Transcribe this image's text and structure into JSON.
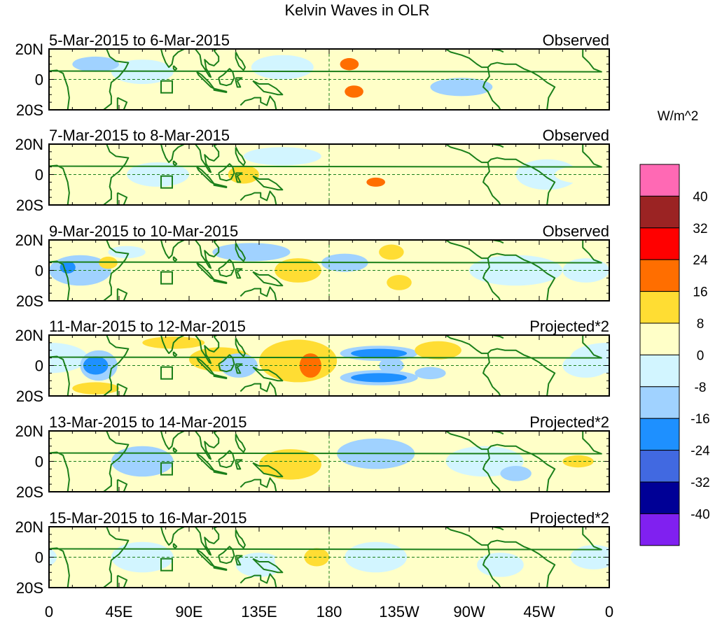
{
  "chart_data": {
    "type": "heatmap",
    "title": "Kelvin Waves in OLR",
    "units_label": "W/m^2",
    "x_ticks": [
      "0",
      "45E",
      "90E",
      "135E",
      "180",
      "135W",
      "90W",
      "45W",
      "0"
    ],
    "x_tick_lons": [
      0,
      45,
      90,
      135,
      180,
      225,
      270,
      315,
      360
    ],
    "y_ticks": [
      "20N",
      "0",
      "20S"
    ],
    "y_tick_lats": [
      20,
      0,
      -20
    ],
    "lon_range": [
      0,
      360
    ],
    "lat_range": [
      -20,
      20
    ],
    "colorbar": {
      "levels": [
        "40",
        "32",
        "24",
        "16",
        "8",
        "0",
        "-8",
        "-16",
        "-24",
        "-32",
        "-40"
      ],
      "colors": [
        "#ff69b4",
        "#9b2323",
        "#ff0000",
        "#ff6e00",
        "#ffdd33",
        "#ffffc8",
        "#d2f5ff",
        "#a0d2ff",
        "#1e90ff",
        "#4169e1",
        "#000096",
        "#8020f0"
      ]
    },
    "coast_color": "#1a7f1a",
    "panels": [
      {
        "date": "5-Mar-2015 to 6-Mar-2015",
        "type": "Observed",
        "blobs": [
          [
            20,
            0,
            30,
            12,
            2
          ],
          [
            60,
            5,
            20,
            8,
            -3
          ],
          [
            100,
            -2,
            25,
            8,
            3
          ],
          [
            150,
            8,
            20,
            8,
            -3
          ],
          [
            193,
            0,
            20,
            18,
            5
          ],
          [
            193,
            10,
            6,
            4,
            18
          ],
          [
            196,
            -8,
            6,
            4,
            18
          ],
          [
            265,
            -5,
            20,
            6,
            -10
          ],
          [
            300,
            0,
            30,
            10,
            2
          ],
          [
            350,
            0,
            15,
            8,
            3
          ],
          [
            30,
            10,
            15,
            5,
            -10
          ],
          [
            60,
            -15,
            15,
            5,
            3
          ]
        ]
      },
      {
        "date": "7-Mar-2015 to 8-Mar-2015",
        "type": "Observed",
        "blobs": [
          [
            15,
            5,
            20,
            8,
            3
          ],
          [
            45,
            -10,
            15,
            6,
            3
          ],
          [
            70,
            0,
            20,
            8,
            -3
          ],
          [
            115,
            10,
            20,
            8,
            3
          ],
          [
            125,
            0,
            10,
            6,
            10
          ],
          [
            140,
            -3,
            20,
            8,
            3
          ],
          [
            150,
            12,
            25,
            6,
            -3
          ],
          [
            185,
            5,
            15,
            8,
            3
          ],
          [
            210,
            5,
            15,
            6,
            3
          ],
          [
            210,
            -5,
            6,
            3,
            18
          ],
          [
            255,
            0,
            20,
            8,
            3
          ],
          [
            320,
            0,
            20,
            10,
            -3
          ],
          [
            345,
            0,
            20,
            6,
            3
          ]
        ]
      },
      {
        "date": "9-Mar-2015 to 10-Mar-2015",
        "type": "Observed",
        "blobs": [
          [
            20,
            0,
            20,
            10,
            -10
          ],
          [
            12,
            2,
            5,
            4,
            -18
          ],
          [
            38,
            5,
            6,
            4,
            10
          ],
          [
            50,
            12,
            12,
            4,
            -3
          ],
          [
            130,
            12,
            25,
            6,
            -10
          ],
          [
            160,
            0,
            15,
            8,
            10
          ],
          [
            190,
            5,
            15,
            6,
            -10
          ],
          [
            220,
            12,
            8,
            5,
            10
          ],
          [
            225,
            -8,
            8,
            5,
            10
          ],
          [
            260,
            0,
            25,
            10,
            3
          ],
          [
            300,
            0,
            30,
            10,
            -3
          ],
          [
            345,
            0,
            15,
            8,
            -3
          ]
        ]
      },
      {
        "date": "11-Mar-2015 to 12-Mar-2015",
        "type": "Projected*2",
        "blobs": [
          [
            0,
            5,
            25,
            10,
            -3
          ],
          [
            32,
            0,
            12,
            10,
            -10
          ],
          [
            30,
            0,
            8,
            6,
            -20
          ],
          [
            80,
            15,
            20,
            4,
            10
          ],
          [
            95,
            3,
            25,
            10,
            3
          ],
          [
            110,
            4,
            20,
            8,
            10
          ],
          [
            122,
            0,
            12,
            8,
            -10
          ],
          [
            160,
            3,
            25,
            14,
            10
          ],
          [
            168,
            0,
            7,
            8,
            20
          ],
          [
            175,
            -10,
            15,
            4,
            3
          ],
          [
            212,
            8,
            25,
            5,
            -10
          ],
          [
            212,
            8,
            18,
            3,
            -20
          ],
          [
            220,
            0,
            8,
            5,
            -10
          ],
          [
            212,
            -8,
            25,
            5,
            -10
          ],
          [
            212,
            -8,
            18,
            3,
            -20
          ],
          [
            250,
            10,
            15,
            6,
            10
          ],
          [
            245,
            -5,
            10,
            4,
            -10
          ],
          [
            300,
            0,
            20,
            10,
            3
          ],
          [
            30,
            -15,
            15,
            4,
            10
          ],
          [
            345,
            0,
            15,
            8,
            -3
          ]
        ]
      },
      {
        "date": "13-Mar-2015 to 14-Mar-2015",
        "type": "Projected*2",
        "blobs": [
          [
            20,
            5,
            30,
            10,
            3
          ],
          [
            60,
            0,
            20,
            10,
            -10
          ],
          [
            120,
            0,
            20,
            12,
            3
          ],
          [
            155,
            -2,
            20,
            10,
            10
          ],
          [
            180,
            -5,
            15,
            8,
            3
          ],
          [
            210,
            5,
            25,
            10,
            -10
          ],
          [
            230,
            0,
            15,
            8,
            3
          ],
          [
            280,
            0,
            25,
            10,
            -3
          ],
          [
            300,
            -8,
            10,
            5,
            -10
          ],
          [
            340,
            0,
            10,
            4,
            10
          ]
        ]
      },
      {
        "date": "15-Mar-2015 to 16-Mar-2015",
        "type": "Projected*2",
        "blobs": [
          [
            20,
            0,
            25,
            10,
            3
          ],
          [
            60,
            0,
            20,
            10,
            -3
          ],
          [
            100,
            5,
            20,
            8,
            3
          ],
          [
            135,
            -5,
            15,
            8,
            -3
          ],
          [
            165,
            -2,
            20,
            10,
            3
          ],
          [
            172,
            0,
            8,
            6,
            10
          ],
          [
            210,
            0,
            20,
            10,
            -3
          ],
          [
            260,
            0,
            25,
            10,
            3
          ],
          [
            290,
            -5,
            15,
            8,
            -3
          ],
          [
            350,
            0,
            15,
            8,
            -3
          ]
        ]
      }
    ]
  }
}
